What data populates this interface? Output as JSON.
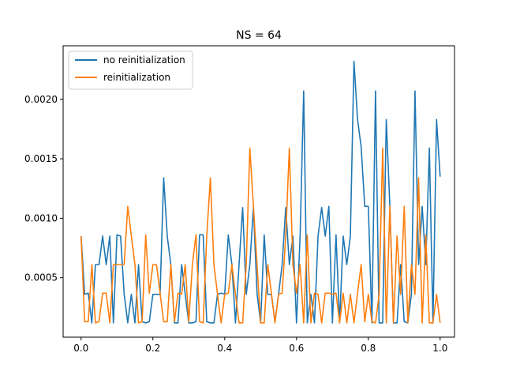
{
  "chart_data": {
    "type": "line",
    "title": "NS = 64",
    "xlabel": "",
    "ylabel": "",
    "xlim": [
      -0.05,
      1.04
    ],
    "ylim": [
      0.0,
      0.00245
    ],
    "xticks": [
      0.0,
      0.2,
      0.4,
      0.6,
      0.8,
      1.0
    ],
    "xtick_labels": [
      "0.0",
      "0.2",
      "0.4",
      "0.6",
      "0.8",
      "1.0"
    ],
    "yticks": [
      0.0005,
      0.001,
      0.0015,
      0.002
    ],
    "ytick_labels": [
      "0.0005",
      "0.0010",
      "0.0015",
      "0.0020"
    ],
    "legend_position": "top-left",
    "grid": false,
    "x_start": 0.0,
    "x_step": 0.01,
    "series": [
      {
        "name": "no reinitialization",
        "color": "#1f77b4",
        "values": [
          0.00085,
          0.00036,
          0.00037,
          0.00012,
          0.00061,
          0.00061,
          0.00085,
          0.00061,
          0.00085,
          0.00012,
          0.00086,
          0.00085,
          0.00036,
          0.00012,
          0.00036,
          0.00012,
          0.00061,
          0.00013,
          0.00012,
          0.00013,
          0.00036,
          0.00036,
          0.00036,
          0.00134,
          0.00085,
          0.00061,
          0.00012,
          0.00012,
          0.00061,
          0.00036,
          0.00012,
          0.00012,
          0.00013,
          0.00086,
          0.00086,
          0.00013,
          0.00012,
          0.00012,
          0.00036,
          0.00037,
          0.00036,
          0.00086,
          0.00061,
          0.00012,
          0.00061,
          0.00109,
          0.00036,
          0.00061,
          0.00109,
          0.00037,
          0.00012,
          0.00086,
          0.00036,
          0.00036,
          0.00013,
          0.00036,
          0.00061,
          0.00109,
          0.00061,
          0.00085,
          0.00012,
          0.00085,
          0.00207,
          0.00012,
          0.00036,
          0.00012,
          0.00085,
          0.00109,
          0.00085,
          0.0011,
          0.00012,
          0.00086,
          0.00012,
          0.00085,
          0.00061,
          0.00085,
          0.00232,
          0.00183,
          0.0016,
          0.0011,
          0.0011,
          0.00012,
          0.00207,
          0.00012,
          0.00012,
          0.00183,
          0.0011,
          0.00012,
          0.00012,
          0.00061,
          0.00013,
          0.00012,
          0.00036,
          0.00207,
          0.00061,
          0.0011,
          0.00061,
          0.00159,
          0.00012,
          0.00183,
          0.00135
        ]
      },
      {
        "name": "reinitialization",
        "color": "#ff7f0e",
        "values": [
          0.00085,
          0.00013,
          0.00013,
          0.00061,
          0.00012,
          0.00013,
          0.00037,
          0.00037,
          0.00012,
          0.00061,
          0.00061,
          0.00061,
          0.00061,
          0.0011,
          0.00085,
          0.00061,
          0.00012,
          0.00013,
          0.00086,
          0.00037,
          0.00061,
          0.00061,
          0.00037,
          0.00013,
          0.00013,
          0.00061,
          0.00013,
          0.00037,
          0.00036,
          0.00061,
          0.00013,
          0.00061,
          0.00086,
          0.00013,
          0.00012,
          0.00085,
          0.00134,
          0.00061,
          0.00036,
          0.00012,
          0.00036,
          0.00037,
          0.00061,
          0.00036,
          0.00012,
          0.00012,
          0.00061,
          0.00159,
          0.0011,
          0.00061,
          0.00012,
          0.00012,
          0.00061,
          0.00037,
          0.00012,
          0.00036,
          0.00037,
          0.00085,
          0.00159,
          0.00061,
          0.00037,
          0.00061,
          0.00012,
          0.00086,
          0.00012,
          0.00037,
          0.00036,
          0.00012,
          0.00037,
          0.00037,
          0.00036,
          0.00037,
          0.00012,
          0.00037,
          0.00012,
          0.00036,
          0.00012,
          0.00037,
          0.00061,
          0.00013,
          0.00036,
          0.00013,
          0.00012,
          0.00036,
          0.00159,
          0.00012,
          0.0011,
          0.00012,
          0.00085,
          0.00036,
          0.0011,
          0.00012,
          0.00061,
          0.00036,
          0.00134,
          0.00012,
          0.00086,
          0.00012,
          0.00012,
          0.00036,
          0.00012
        ]
      }
    ]
  }
}
